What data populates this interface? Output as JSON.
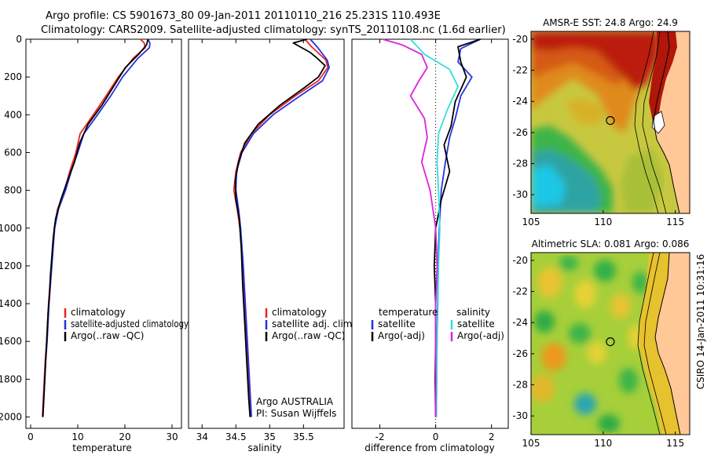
{
  "header": {
    "line1": "Argo profile: CS 5901673_80 09-Jan-2011 20110110_216 25.231S 110.493E",
    "line2": "Climatology: CARS2009. Satellite-adjusted climatology: synTS_20110108.nc (1.6d earlier)"
  },
  "side_stamp": "CSIRO 14-Jan-2011 10:31:16",
  "chart_data": [
    {
      "type": "line",
      "xlabel": "temperature",
      "ylabel": "",
      "xlim": [
        -1,
        32
      ],
      "ylim": [
        0,
        2060
      ],
      "y_reversed": true,
      "xticks": [
        0,
        10,
        20,
        30
      ],
      "yticks": [
        0,
        200,
        400,
        600,
        800,
        1000,
        1200,
        1400,
        1600,
        1800,
        2000
      ],
      "legend": {
        "position": "lower-right",
        "entries": [
          "climatology",
          "satellite-adjusted climatology",
          "Argo(..raw -QC)"
        ]
      },
      "series": [
        {
          "name": "climatology",
          "color": "#ee2222",
          "points": [
            [
              23.3,
              0
            ],
            [
              24.1,
              20
            ],
            [
              24.3,
              45
            ],
            [
              21.8,
              100
            ],
            [
              18.6,
              200
            ],
            [
              16.0,
              300
            ],
            [
              13.3,
              400
            ],
            [
              10.5,
              500
            ],
            [
              9.6,
              600
            ],
            [
              8.3,
              700
            ],
            [
              7.2,
              800
            ],
            [
              5.7,
              900
            ],
            [
              5.0,
              1000
            ],
            [
              4.7,
              1100
            ],
            [
              4.4,
              1200
            ],
            [
              4.1,
              1300
            ],
            [
              3.8,
              1400
            ],
            [
              3.6,
              1500
            ],
            [
              3.4,
              1600
            ],
            [
              3.1,
              1700
            ],
            [
              2.9,
              1800
            ],
            [
              2.7,
              1900
            ],
            [
              2.5,
              2000
            ]
          ]
        },
        {
          "name": "satellite-adjusted climatology",
          "color": "#2233dd",
          "points": [
            [
              24.9,
              0
            ],
            [
              25.3,
              20
            ],
            [
              25.2,
              45
            ],
            [
              22.8,
              100
            ],
            [
              19.5,
              200
            ],
            [
              17.0,
              300
            ],
            [
              14.2,
              400
            ],
            [
              11.3,
              500
            ],
            [
              10.0,
              600
            ],
            [
              8.6,
              700
            ],
            [
              7.4,
              800
            ],
            [
              5.9,
              900
            ],
            [
              5.1,
              1000
            ],
            [
              4.8,
              1100
            ],
            [
              4.5,
              1200
            ],
            [
              4.2,
              1300
            ],
            [
              3.9,
              1400
            ],
            [
              3.7,
              1500
            ],
            [
              3.5,
              1600
            ],
            [
              3.2,
              1700
            ],
            [
              3.0,
              1800
            ],
            [
              2.8,
              1900
            ],
            [
              2.6,
              2000
            ]
          ]
        },
        {
          "name": "Argo(..raw -QC)",
          "color": "#000000",
          "points": [
            [
              24.9,
              0
            ],
            [
              24.6,
              30
            ],
            [
              22.9,
              80
            ],
            [
              20.1,
              150
            ],
            [
              17.6,
              250
            ],
            [
              15.1,
              350
            ],
            [
              12.2,
              450
            ],
            [
              10.4,
              550
            ],
            [
              9.3,
              650
            ],
            [
              7.8,
              750
            ],
            [
              6.4,
              850
            ],
            [
              5.3,
              950
            ],
            [
              4.8,
              1050
            ],
            [
              4.5,
              1150
            ],
            [
              4.2,
              1250
            ],
            [
              4.0,
              1350
            ],
            [
              3.7,
              1450
            ],
            [
              3.5,
              1550
            ],
            [
              3.3,
              1650
            ],
            [
              3.1,
              1750
            ],
            [
              2.9,
              1850
            ],
            [
              2.7,
              1950
            ],
            [
              2.6,
              2000
            ]
          ]
        }
      ]
    },
    {
      "type": "line",
      "xlabel": "salinity",
      "xlim": [
        33.8,
        36.1
      ],
      "ylim": [
        0,
        2060
      ],
      "y_reversed": true,
      "xticks": [
        34,
        34.5,
        35,
        35.5
      ],
      "legend": {
        "position": "lower-right",
        "entries": [
          "climatology",
          "satellite adj. clim.",
          "Argo(..raw -QC)"
        ]
      },
      "annotation": [
        "Argo AUSTRALIA",
        "PI: Susan Wijffels"
      ],
      "series": [
        {
          "name": "climatology",
          "color": "#ee2222",
          "points": [
            [
              35.52,
              0
            ],
            [
              35.62,
              40
            ],
            [
              35.83,
              110
            ],
            [
              35.86,
              150
            ],
            [
              35.72,
              220
            ],
            [
              35.38,
              300
            ],
            [
              35.0,
              400
            ],
            [
              34.73,
              500
            ],
            [
              34.57,
              600
            ],
            [
              34.5,
              700
            ],
            [
              34.47,
              800
            ],
            [
              34.52,
              900
            ],
            [
              34.56,
              1000
            ],
            [
              34.6,
              1200
            ],
            [
              34.63,
              1400
            ],
            [
              34.66,
              1600
            ],
            [
              34.69,
              1800
            ],
            [
              34.72,
              2000
            ]
          ]
        },
        {
          "name": "satellite adj. clim.",
          "color": "#2233dd",
          "points": [
            [
              35.6,
              0
            ],
            [
              35.7,
              40
            ],
            [
              35.85,
              110
            ],
            [
              35.88,
              150
            ],
            [
              35.78,
              220
            ],
            [
              35.45,
              300
            ],
            [
              35.05,
              400
            ],
            [
              34.76,
              500
            ],
            [
              34.59,
              600
            ],
            [
              34.51,
              700
            ],
            [
              34.5,
              800
            ],
            [
              34.54,
              900
            ],
            [
              34.57,
              1000
            ],
            [
              34.61,
              1200
            ],
            [
              34.64,
              1400
            ],
            [
              34.67,
              1600
            ],
            [
              34.7,
              1800
            ],
            [
              34.73,
              2000
            ]
          ]
        },
        {
          "name": "Argo(..raw -QC)",
          "color": "#000000",
          "points": [
            [
              35.55,
              0
            ],
            [
              35.35,
              20
            ],
            [
              35.45,
              40
            ],
            [
              35.6,
              70
            ],
            [
              35.7,
              100
            ],
            [
              35.82,
              140
            ],
            [
              35.72,
              200
            ],
            [
              35.5,
              260
            ],
            [
              35.15,
              350
            ],
            [
              34.83,
              450
            ],
            [
              34.63,
              550
            ],
            [
              34.54,
              650
            ],
            [
              34.49,
              750
            ],
            [
              34.5,
              850
            ],
            [
              34.55,
              950
            ],
            [
              34.58,
              1100
            ],
            [
              34.6,
              1300
            ],
            [
              34.63,
              1500
            ],
            [
              34.66,
              1700
            ],
            [
              34.69,
              1900
            ],
            [
              34.71,
              2000
            ]
          ]
        }
      ]
    },
    {
      "type": "line",
      "xlabel": "difference from climatology",
      "xlim": [
        -3,
        2.6
      ],
      "ylim": [
        0,
        2060
      ],
      "y_reversed": true,
      "xticks": [
        -2,
        0,
        2
      ],
      "legend": {
        "position": "lower-center",
        "left_title": "temperature",
        "right_title": "salinity",
        "entries": [
          "satellite",
          "Argo(-adj)",
          "satellite",
          "Argo(-adj)"
        ]
      },
      "series": [
        {
          "name": "temperature satellite",
          "color": "#2233dd",
          "points": [
            [
              1.6,
              0
            ],
            [
              0.9,
              50
            ],
            [
              0.8,
              120
            ],
            [
              1.3,
              200
            ],
            [
              0.9,
              300
            ],
            [
              0.7,
              420
            ],
            [
              0.5,
              520
            ],
            [
              0.35,
              650
            ],
            [
              0.2,
              800
            ],
            [
              0.15,
              950
            ],
            [
              0.1,
              1100
            ],
            [
              0.08,
              1300
            ],
            [
              0.06,
              1500
            ],
            [
              0.04,
              1700
            ],
            [
              0.03,
              1900
            ],
            [
              0.02,
              2000
            ]
          ]
        },
        {
          "name": "temperature Argo(-adj)",
          "color": "#000000",
          "points": [
            [
              1.6,
              0
            ],
            [
              0.8,
              40
            ],
            [
              0.9,
              120
            ],
            [
              1.1,
              200
            ],
            [
              0.7,
              330
            ],
            [
              0.55,
              460
            ],
            [
              0.3,
              560
            ],
            [
              0.5,
              700
            ],
            [
              0.2,
              850
            ],
            [
              0.0,
              1000
            ],
            [
              -0.05,
              1200
            ],
            [
              0.0,
              1400
            ],
            [
              0.0,
              1600
            ],
            [
              -0.02,
              1800
            ],
            [
              0.0,
              2000
            ]
          ]
        },
        {
          "name": "salinity satellite",
          "color": "#33dddd",
          "points": [
            [
              -0.9,
              0
            ],
            [
              -0.4,
              80
            ],
            [
              0.5,
              160
            ],
            [
              0.8,
              250
            ],
            [
              0.4,
              380
            ],
            [
              0.1,
              500
            ],
            [
              0.05,
              650
            ],
            [
              0.1,
              800
            ],
            [
              0.15,
              1000
            ],
            [
              0.1,
              1200
            ],
            [
              0.08,
              1400
            ],
            [
              0.05,
              1600
            ],
            [
              0.04,
              1800
            ],
            [
              0.02,
              2000
            ]
          ]
        },
        {
          "name": "salinity Argo(-adj)",
          "color": "#dd22dd",
          "points": [
            [
              -1.9,
              0
            ],
            [
              -1.2,
              30
            ],
            [
              -0.5,
              80
            ],
            [
              -0.3,
              150
            ],
            [
              -0.6,
              220
            ],
            [
              -0.9,
              300
            ],
            [
              -0.4,
              420
            ],
            [
              -0.3,
              520
            ],
            [
              -0.5,
              650
            ],
            [
              -0.2,
              800
            ],
            [
              -0.1,
              900
            ],
            [
              0.0,
              1000
            ],
            [
              0.05,
              1200
            ],
            [
              0.0,
              1400
            ],
            [
              0.0,
              1600
            ],
            [
              0.0,
              1800
            ],
            [
              0.0,
              2000
            ]
          ]
        }
      ]
    },
    {
      "type": "heatmap",
      "title": "AMSR-E SST: 24.8 Argo: 24.9",
      "xlim": [
        105,
        116
      ],
      "ylim": [
        -31.2,
        -19.5
      ],
      "xticks": [
        105,
        110,
        115
      ],
      "yticks": [
        -20,
        -22,
        -24,
        -26,
        -28,
        -30
      ],
      "marker": {
        "lon": 110.493,
        "lat": -25.231
      }
    },
    {
      "type": "heatmap",
      "title": "Altimetric SLA: 0.081 Argo: 0.086",
      "xlim": [
        105,
        116
      ],
      "ylim": [
        -31.2,
        -19.5
      ],
      "xticks": [
        105,
        110,
        115
      ],
      "yticks": [
        -20,
        -22,
        -24,
        -26,
        -28,
        -30
      ],
      "marker": {
        "lon": 110.493,
        "lat": -25.231
      }
    }
  ]
}
